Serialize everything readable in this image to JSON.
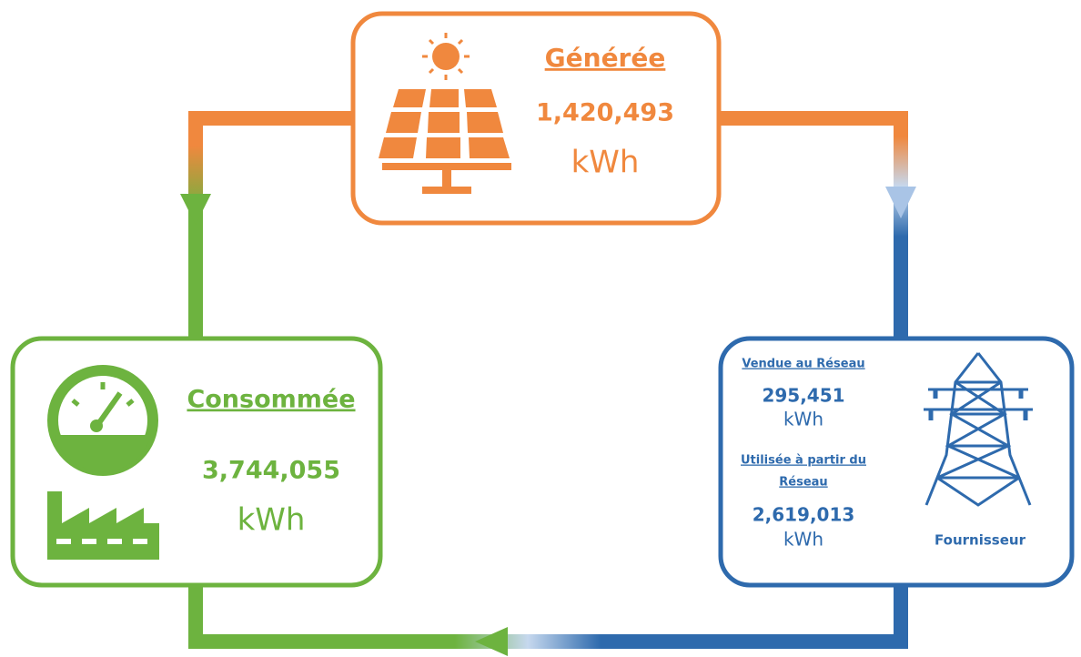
{
  "generated": {
    "title": "Générée",
    "value": "1,420,493",
    "unit": "kWh"
  },
  "consumed": {
    "title": "Consommée",
    "value": "3,744,055",
    "unit": "kWh"
  },
  "grid": {
    "sold": {
      "title": "Vendue au Réseau",
      "value": "295,451",
      "unit": "kWh"
    },
    "used": {
      "title_lines": [
        "Utilisée à partir du",
        "Réseau"
      ],
      "value": "2,619,013",
      "unit": "kWh"
    },
    "supplier": "Fournisseur"
  }
}
